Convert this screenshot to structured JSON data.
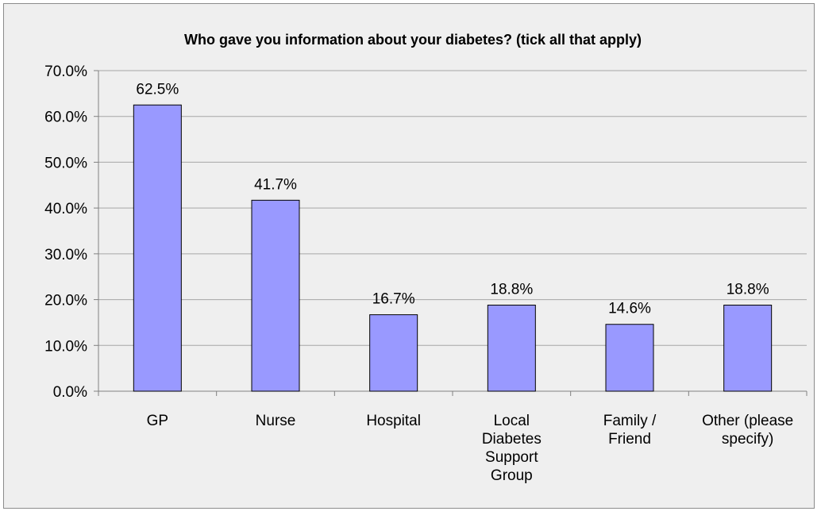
{
  "chart_data": {
    "type": "bar",
    "title": "Who gave you information about your diabetes? (tick all that apply)",
    "categories": [
      "GP",
      "Nurse",
      "Hospital",
      "Local Diabetes Support Group",
      "Family / Friend",
      "Other (please specify)"
    ],
    "category_lines": [
      [
        "GP"
      ],
      [
        "Nurse"
      ],
      [
        "Hospital"
      ],
      [
        "Local",
        "Diabetes",
        "Support",
        "Group"
      ],
      [
        "Family /",
        "Friend"
      ],
      [
        "Other (please",
        "specify)"
      ]
    ],
    "values": [
      62.5,
      41.7,
      16.7,
      18.8,
      14.6,
      18.8
    ],
    "data_labels": [
      "62.5%",
      "41.7%",
      "16.7%",
      "18.8%",
      "14.6%",
      "18.8%"
    ],
    "y_ticks": [
      "0.0%",
      "10.0%",
      "20.0%",
      "30.0%",
      "40.0%",
      "50.0%",
      "60.0%",
      "70.0%"
    ],
    "ylim": [
      0,
      70
    ],
    "xlabel": "",
    "ylabel": "",
    "grid": true,
    "legend": false,
    "colors": {
      "bar_fill": "#9999ff",
      "bar_stroke": "#000000",
      "plot_background": "#efefef",
      "gridline": "#a6a6a6",
      "axis": "#808080"
    }
  }
}
